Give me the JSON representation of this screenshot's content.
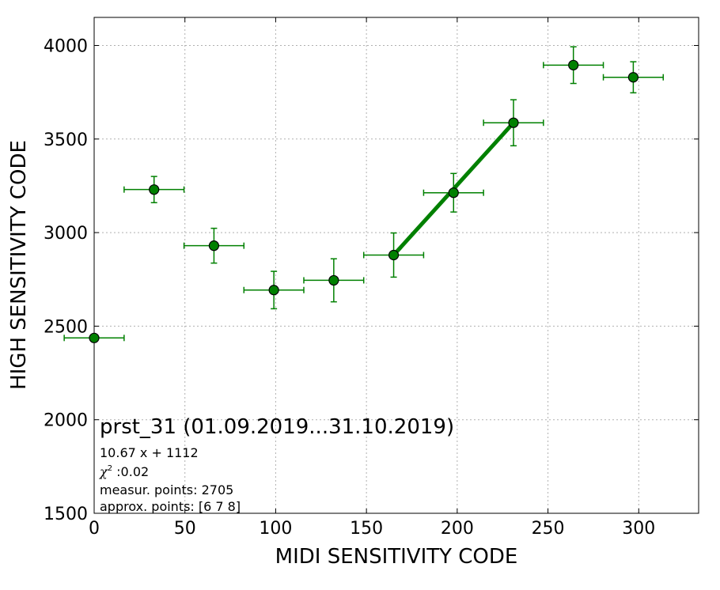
{
  "chart_data": {
    "type": "scatter",
    "xlabel": "MIDI SENSITIVITY CODE",
    "ylabel": "HIGH SENSITIVITY CODE",
    "xlim": [
      0,
      333
    ],
    "ylim": [
      1500,
      4150
    ],
    "xticks": [
      0,
      50,
      100,
      150,
      200,
      250,
      300
    ],
    "yticks": [
      1500,
      2000,
      2500,
      3000,
      3500,
      4000
    ],
    "grid": true,
    "color": "#008000",
    "series": [
      {
        "points": [
          {
            "x": 0,
            "y": 2437,
            "xerr": 16.5,
            "yerr": 0
          },
          {
            "x": 33,
            "y": 3230,
            "xerr": 16.5,
            "yerr": 70
          },
          {
            "x": 66,
            "y": 2930,
            "xerr": 16.5,
            "yerr": 93
          },
          {
            "x": 99,
            "y": 2693,
            "xerr": 16.5,
            "yerr": 100
          },
          {
            "x": 132,
            "y": 2745,
            "xerr": 16.5,
            "yerr": 115
          },
          {
            "x": 165,
            "y": 2880,
            "xerr": 16.5,
            "yerr": 118
          },
          {
            "x": 198,
            "y": 3213,
            "xerr": 16.5,
            "yerr": 103
          },
          {
            "x": 231,
            "y": 3587,
            "xerr": 16.5,
            "yerr": 123
          },
          {
            "x": 264,
            "y": 3895,
            "xerr": 16.5,
            "yerr": 98
          },
          {
            "x": 297,
            "y": 3830,
            "xerr": 16.5,
            "yerr": 83
          }
        ]
      }
    ],
    "fit_line": {
      "x": [
        165,
        231
      ],
      "y": [
        2880,
        3587
      ]
    },
    "annotations": {
      "title": "prst_31 (01.09.2019...31.10.2019)",
      "equation": "10.67 x + 1112",
      "chi2_symbol": "χ",
      "chi2_exp": "2",
      "chi2_value": " :0.02",
      "measur_points": "measur. points: 2705",
      "approx_points": "approx. points: [6 7 8]"
    }
  }
}
